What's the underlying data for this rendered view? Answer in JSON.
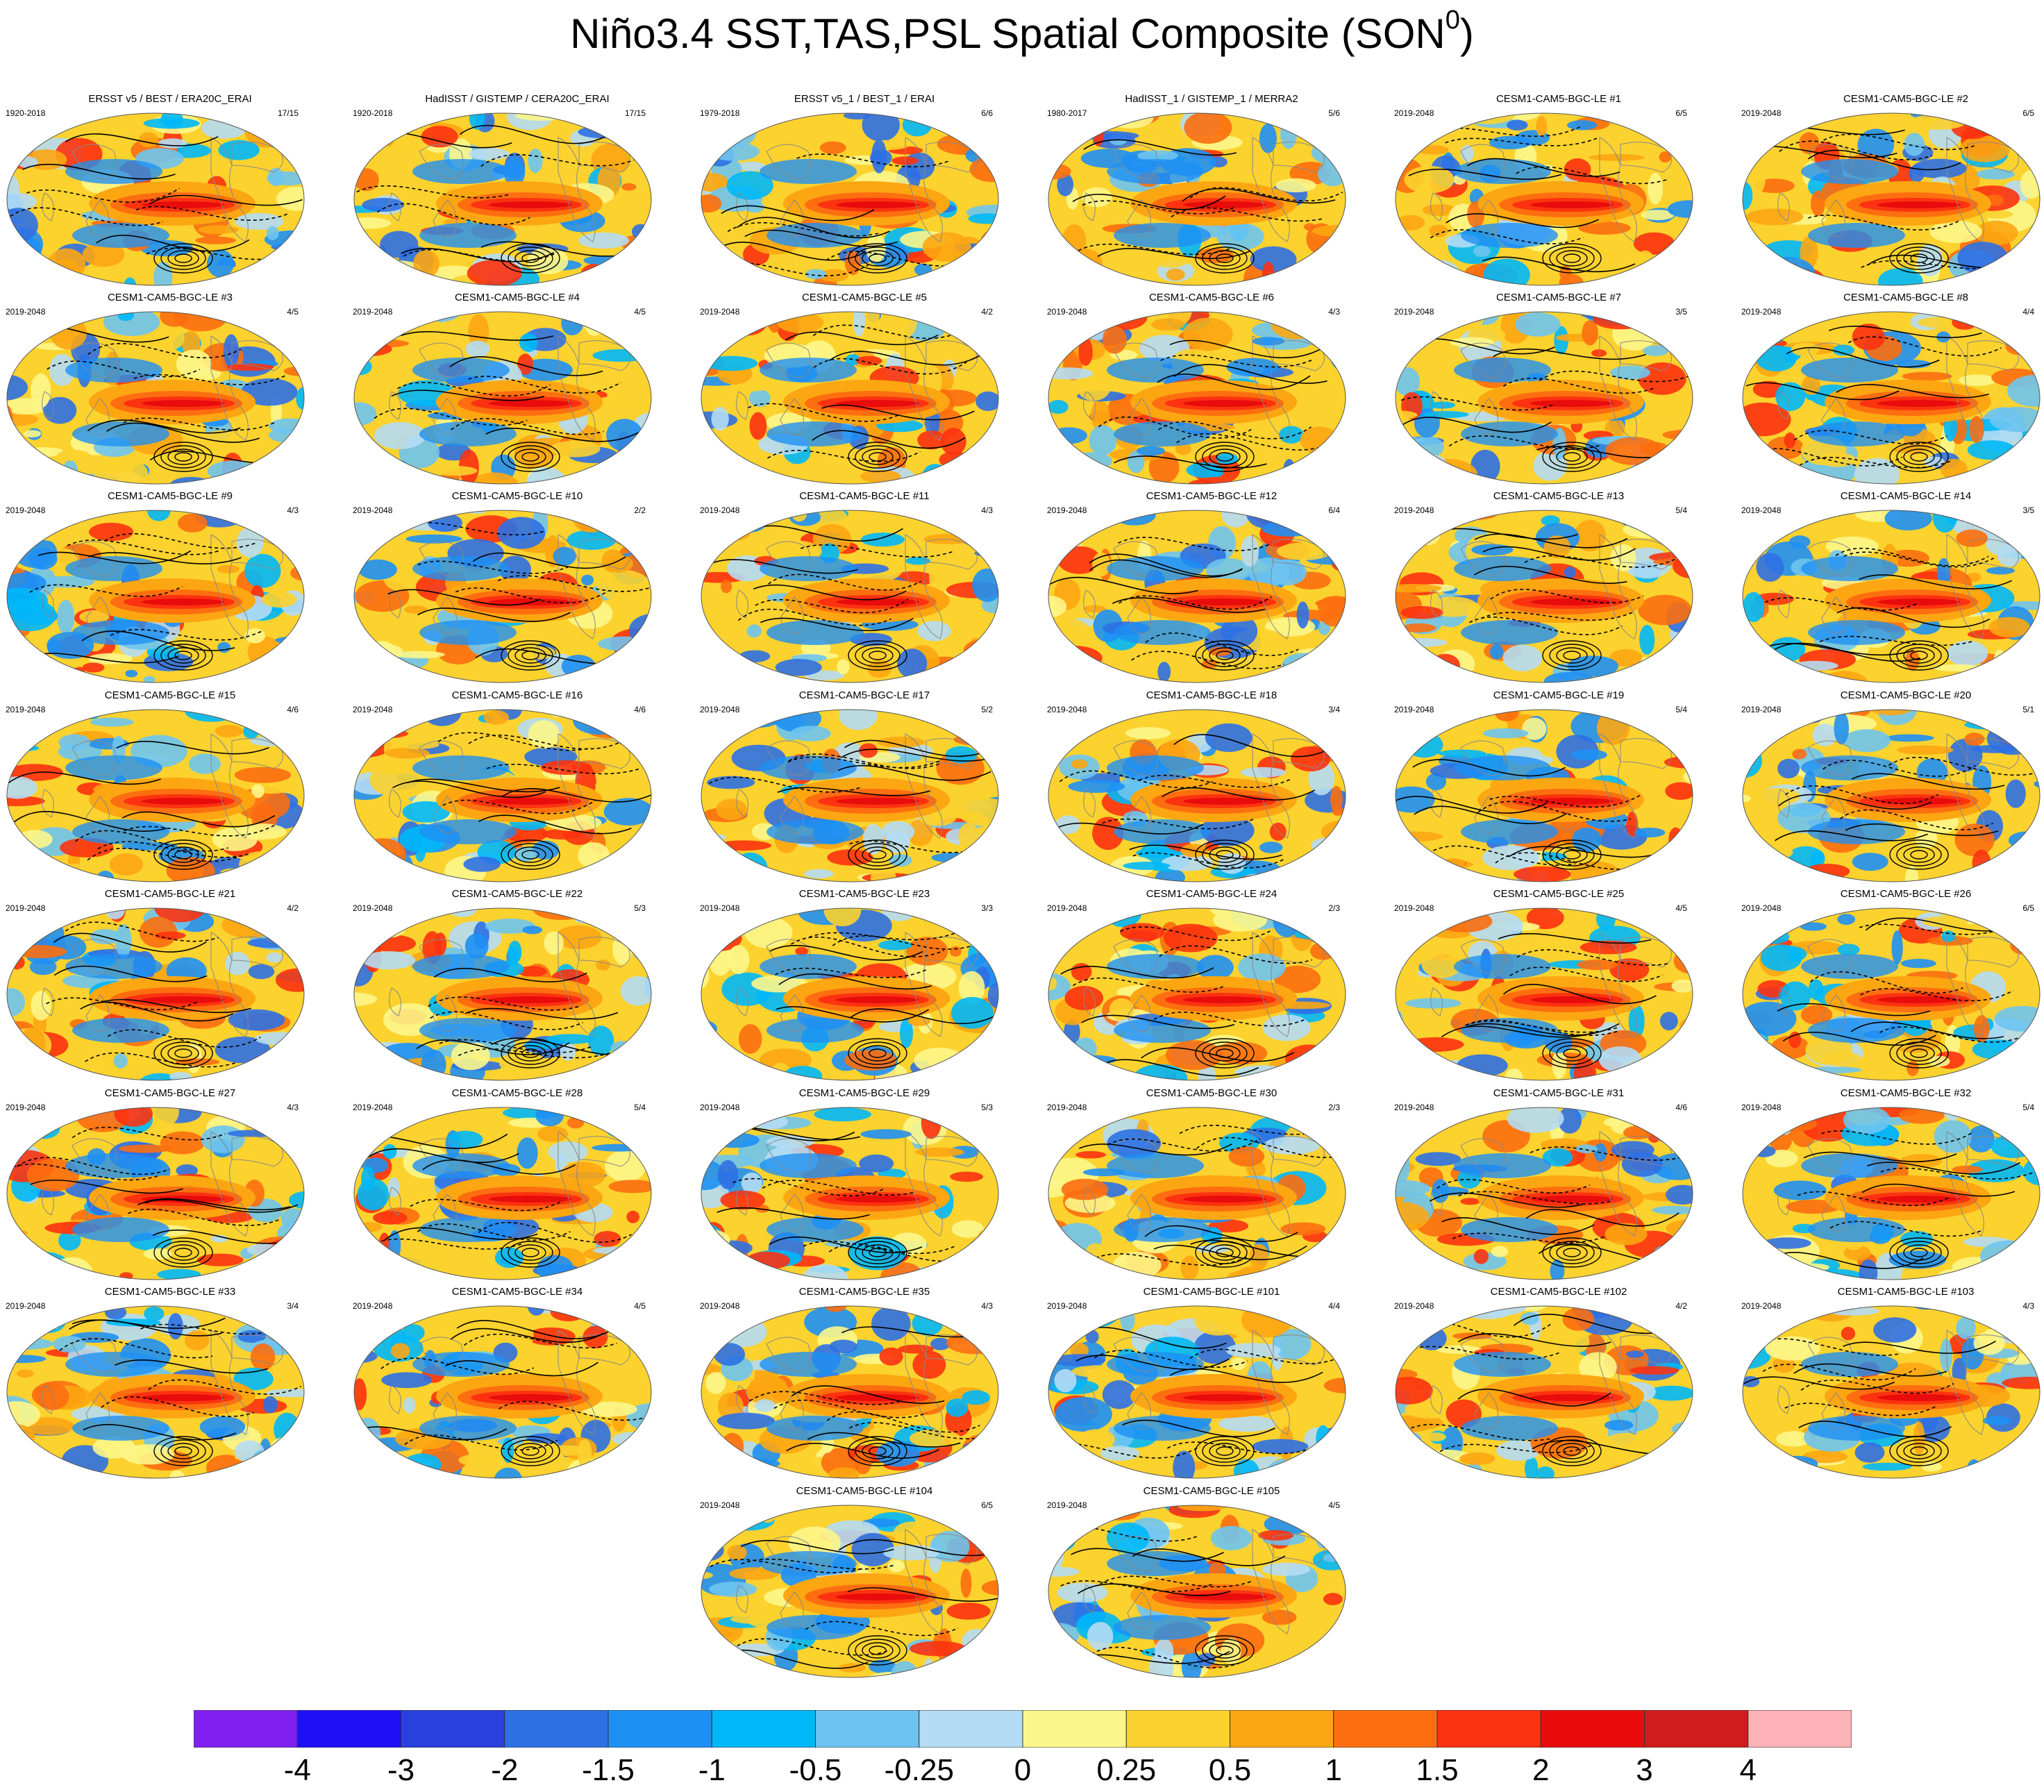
{
  "title": {
    "main": "Niño3.4 SST,TAS,PSL Spatial Composite (SON",
    "superscript": "0",
    "close": ")"
  },
  "panels": [
    {
      "title": "ERSST v5 / BEST / ERA20C_ERAI",
      "period": "1920-2018",
      "count": "17/15"
    },
    {
      "title": "HadISST / GISTEMP / CERA20C_ERAI",
      "period": "1920-2018",
      "count": "17/15"
    },
    {
      "title": "ERSST v5_1 / BEST_1 / ERAI",
      "period": "1979-2018",
      "count": "6/6"
    },
    {
      "title": "HadISST_1 / GISTEMP_1 / MERRA2",
      "period": "1980-2017",
      "count": "5/6"
    },
    {
      "title": "CESM1-CAM5-BGC-LE #1",
      "period": "2019-2048",
      "count": "6/5"
    },
    {
      "title": "CESM1-CAM5-BGC-LE #2",
      "period": "2019-2048",
      "count": "6/5"
    },
    {
      "title": "CESM1-CAM5-BGC-LE #3",
      "period": "2019-2048",
      "count": "4/5"
    },
    {
      "title": "CESM1-CAM5-BGC-LE #4",
      "period": "2019-2048",
      "count": "4/5"
    },
    {
      "title": "CESM1-CAM5-BGC-LE #5",
      "period": "2019-2048",
      "count": "4/2"
    },
    {
      "title": "CESM1-CAM5-BGC-LE #6",
      "period": "2019-2048",
      "count": "4/3"
    },
    {
      "title": "CESM1-CAM5-BGC-LE #7",
      "period": "2019-2048",
      "count": "3/5"
    },
    {
      "title": "CESM1-CAM5-BGC-LE #8",
      "period": "2019-2048",
      "count": "4/4"
    },
    {
      "title": "CESM1-CAM5-BGC-LE #9",
      "period": "2019-2048",
      "count": "4/3"
    },
    {
      "title": "CESM1-CAM5-BGC-LE #10",
      "period": "2019-2048",
      "count": "2/2"
    },
    {
      "title": "CESM1-CAM5-BGC-LE #11",
      "period": "2019-2048",
      "count": "4/3"
    },
    {
      "title": "CESM1-CAM5-BGC-LE #12",
      "period": "2019-2048",
      "count": "6/4"
    },
    {
      "title": "CESM1-CAM5-BGC-LE #13",
      "period": "2019-2048",
      "count": "5/4"
    },
    {
      "title": "CESM1-CAM5-BGC-LE #14",
      "period": "2019-2048",
      "count": "3/5"
    },
    {
      "title": "CESM1-CAM5-BGC-LE #15",
      "period": "2019-2048",
      "count": "4/6"
    },
    {
      "title": "CESM1-CAM5-BGC-LE #16",
      "period": "2019-2048",
      "count": "4/6"
    },
    {
      "title": "CESM1-CAM5-BGC-LE #17",
      "period": "2019-2048",
      "count": "5/2"
    },
    {
      "title": "CESM1-CAM5-BGC-LE #18",
      "period": "2019-2048",
      "count": "3/4"
    },
    {
      "title": "CESM1-CAM5-BGC-LE #19",
      "period": "2019-2048",
      "count": "5/4"
    },
    {
      "title": "CESM1-CAM5-BGC-LE #20",
      "period": "2019-2048",
      "count": "5/1"
    },
    {
      "title": "CESM1-CAM5-BGC-LE #21",
      "period": "2019-2048",
      "count": "4/2"
    },
    {
      "title": "CESM1-CAM5-BGC-LE #22",
      "period": "2019-2048",
      "count": "5/3"
    },
    {
      "title": "CESM1-CAM5-BGC-LE #23",
      "period": "2019-2048",
      "count": "3/3"
    },
    {
      "title": "CESM1-CAM5-BGC-LE #24",
      "period": "2019-2048",
      "count": "2/3"
    },
    {
      "title": "CESM1-CAM5-BGC-LE #25",
      "period": "2019-2048",
      "count": "4/5"
    },
    {
      "title": "CESM1-CAM5-BGC-LE #26",
      "period": "2019-2048",
      "count": "6/5"
    },
    {
      "title": "CESM1-CAM5-BGC-LE #27",
      "period": "2019-2048",
      "count": "4/3"
    },
    {
      "title": "CESM1-CAM5-BGC-LE #28",
      "period": "2019-2048",
      "count": "5/4"
    },
    {
      "title": "CESM1-CAM5-BGC-LE #29",
      "period": "2019-2048",
      "count": "5/3"
    },
    {
      "title": "CESM1-CAM5-BGC-LE #30",
      "period": "2019-2048",
      "count": "2/3"
    },
    {
      "title": "CESM1-CAM5-BGC-LE #31",
      "period": "2019-2048",
      "count": "4/6"
    },
    {
      "title": "CESM1-CAM5-BGC-LE #32",
      "period": "2019-2048",
      "count": "5/4"
    },
    {
      "title": "CESM1-CAM5-BGC-LE #33",
      "period": "2019-2048",
      "count": "3/4"
    },
    {
      "title": "CESM1-CAM5-BGC-LE #34",
      "period": "2019-2048",
      "count": "4/5"
    },
    {
      "title": "CESM1-CAM5-BGC-LE #35",
      "period": "2019-2048",
      "count": "4/3"
    },
    {
      "title": "CESM1-CAM5-BGC-LE #101",
      "period": "2019-2048",
      "count": "4/4"
    },
    {
      "title": "CESM1-CAM5-BGC-LE #102",
      "period": "2019-2048",
      "count": "4/2"
    },
    {
      "title": "CESM1-CAM5-BGC-LE #103",
      "period": "2019-2048",
      "count": "4/3"
    },
    {
      "title": "CESM1-CAM5-BGC-LE #104",
      "period": "2019-2048",
      "count": "6/5"
    },
    {
      "title": "CESM1-CAM5-BGC-LE #105",
      "period": "2019-2048",
      "count": "4/5"
    }
  ],
  "colorbar": {
    "colors": [
      "#7f20f0",
      "#1e10f4",
      "#2a40dc",
      "#2d70e4",
      "#1e90f4",
      "#00b8f8",
      "#6ec4f0",
      "#b4dcf4",
      "#fcf68a",
      "#fcd22e",
      "#fca612",
      "#fc6e10",
      "#fc3210",
      "#e80c0c",
      "#d01c1c",
      "#fcb2b6"
    ],
    "labels": [
      "-4",
      "-3",
      "-2",
      "-1.5",
      "-1",
      "-0.5",
      "-0.25",
      "0",
      "0.25",
      "0.5",
      "1",
      "1.5",
      "2",
      "3",
      "4"
    ]
  }
}
